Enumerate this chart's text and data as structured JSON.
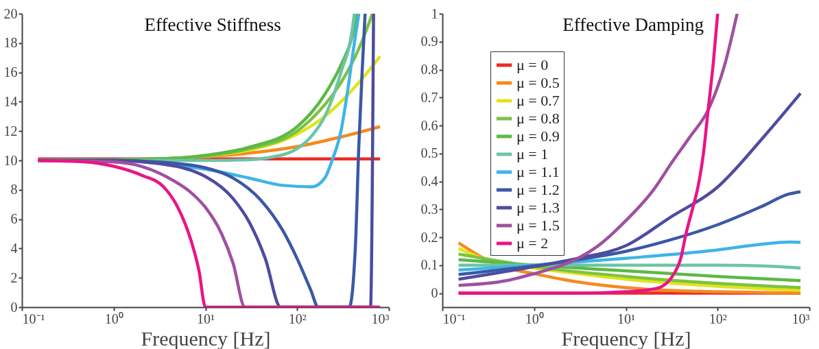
{
  "chart_data": [
    {
      "type": "line",
      "title": "Effective Stiffness",
      "xlabel": "Frequency [Hz]",
      "log": "x",
      "grid": false,
      "legend": false,
      "xlim": [
        0.1,
        1000
      ],
      "ylim": [
        0,
        20
      ],
      "xticks": [
        {
          "value": 0.1,
          "label": "10⁻¹"
        },
        {
          "value": 1,
          "label": "10⁰"
        },
        {
          "value": 10,
          "label": "10¹"
        },
        {
          "value": 100,
          "label": "10²"
        },
        {
          "value": 1000,
          "label": "10³"
        }
      ],
      "yticks": [
        0,
        2,
        4,
        6,
        8,
        10,
        12,
        14,
        16,
        18,
        20
      ],
      "series": [
        {
          "color": "#ee2a24",
          "x": [
            0.15,
            800
          ],
          "values": [
            10.1,
            10.1
          ]
        },
        {
          "color": "#f58a1f",
          "x": [
            3,
            10,
            30,
            100,
            300,
            800
          ],
          "values": [
            10.1,
            10.25,
            10.5,
            10.95,
            11.6,
            12.3
          ]
        },
        {
          "color": "#e0e41a",
          "x": [
            3,
            10,
            30,
            100,
            200,
            300,
            500,
            800
          ],
          "values": [
            10.1,
            10.3,
            10.7,
            11.8,
            13,
            14,
            15.5,
            17.1
          ]
        },
        {
          "color": "#7cc242",
          "x": [
            0.15,
            1,
            3,
            10,
            30,
            100,
            200,
            300,
            500,
            660
          ],
          "values": [
            10.05,
            10.05,
            10.1,
            10.3,
            10.8,
            12,
            13.8,
            15.3,
            18,
            20
          ]
        },
        {
          "color": "#5cb946",
          "x": [
            0.15,
            1,
            3,
            10,
            30,
            100,
            200,
            300,
            400,
            450
          ],
          "values": [
            10.05,
            10.05,
            10.1,
            10.35,
            10.9,
            12.3,
            14.5,
            16.5,
            18.5,
            20
          ]
        },
        {
          "color": "#6cc5a6",
          "x": [
            0.15,
            1,
            10,
            30,
            50,
            100,
            150,
            200,
            300,
            400,
            420
          ],
          "values": [
            10,
            10,
            10,
            10.05,
            10.2,
            10.8,
            11.8,
            13,
            16,
            19,
            20
          ]
        },
        {
          "color": "#3fb4e8",
          "x": [
            0.15,
            1,
            3,
            10,
            30,
            70,
            145,
            200,
            240,
            300,
            350,
            420,
            470
          ],
          "values": [
            10,
            10,
            9.8,
            9.4,
            8.8,
            8.3,
            8.2,
            8.8,
            10,
            12,
            14.5,
            18,
            20
          ]
        },
        {
          "color": "#3a58a6",
          "x": [
            0.15,
            1,
            3,
            10,
            20,
            40,
            70,
            100,
            140,
            170,
            370,
            430,
            470,
            510,
            550
          ],
          "values": [
            10,
            10,
            9.9,
            9.5,
            8.8,
            7.3,
            5.2,
            3.3,
            1.2,
            0,
            0,
            4,
            11,
            16,
            20
          ]
        },
        {
          "color": "#4e4c9f",
          "x": [
            0.15,
            1,
            3,
            10,
            20,
            30,
            45,
            66,
            630,
            680
          ],
          "values": [
            10,
            10,
            9.8,
            8.9,
            7.4,
            5.8,
            3.3,
            0,
            0,
            20
          ]
        },
        {
          "color": "#a0509f",
          "x": [
            0.15,
            1,
            2,
            4,
            7,
            10,
            15,
            20,
            27,
            800
          ],
          "values": [
            10,
            9.9,
            9.6,
            8.8,
            7.8,
            6.8,
            5,
            3,
            0,
            0
          ]
        },
        {
          "color": "#ea1487",
          "x": [
            0.15,
            0.5,
            1,
            2,
            3.5,
            5,
            7,
            8.5,
            10,
            800
          ],
          "values": [
            10,
            9.9,
            9.6,
            9,
            8.2,
            6.8,
            4.5,
            2.5,
            0,
            0
          ]
        }
      ]
    },
    {
      "type": "line",
      "title": "Effective Damping",
      "xlabel": "Frequency [Hz]",
      "log": "x",
      "grid": false,
      "legend": "top left",
      "xlim": [
        0.1,
        1000
      ],
      "ylim": [
        -0.05,
        1
      ],
      "xticks": [
        {
          "value": 0.1,
          "label": "10⁻¹"
        },
        {
          "value": 1,
          "label": "10⁰"
        },
        {
          "value": 10,
          "label": "10¹"
        },
        {
          "value": 100,
          "label": "10²"
        },
        {
          "value": 1000,
          "label": "10³"
        }
      ],
      "yticks": [
        0,
        0.1,
        0.2,
        0.3,
        0.4,
        0.5,
        0.6,
        0.7,
        0.8,
        0.9,
        1
      ],
      "series": [
        {
          "name": "μ = 0",
          "color": "#ee2a24",
          "x": [
            0.15,
            800
          ],
          "values": [
            0,
            0
          ]
        },
        {
          "name": "μ = 0.5",
          "color": "#f58a1f",
          "x": [
            0.15,
            0.3,
            0.5,
            1,
            2,
            3,
            10,
            30,
            100,
            800
          ],
          "values": [
            0.18,
            0.12,
            0.09,
            0.07,
            0.05,
            0.04,
            0.02,
            0.01,
            0.005,
            0
          ]
        },
        {
          "name": "μ = 0.7",
          "color": "#e0e41a",
          "x": [
            0.15,
            0.3,
            1,
            3,
            10,
            100,
            800
          ],
          "values": [
            0.16,
            0.12,
            0.09,
            0.07,
            0.05,
            0.025,
            0.01
          ]
        },
        {
          "name": "μ = 0.8",
          "color": "#7cc242",
          "x": [
            0.15,
            1,
            10,
            100,
            800
          ],
          "values": [
            0.14,
            0.095,
            0.06,
            0.035,
            0.02
          ]
        },
        {
          "name": "μ = 0.9",
          "color": "#5cb946",
          "x": [
            0.15,
            1,
            10,
            100,
            800
          ],
          "values": [
            0.12,
            0.1,
            0.08,
            0.06,
            0.045
          ]
        },
        {
          "name": "μ = 1",
          "color": "#6cc5a6",
          "x": [
            0.15,
            100,
            300,
            800
          ],
          "values": [
            0.1,
            0.1,
            0.098,
            0.09
          ]
        },
        {
          "name": "μ = 1.1",
          "color": "#3fb4e8",
          "x": [
            0.15,
            1,
            10,
            100,
            300,
            600,
            800
          ],
          "values": [
            0.083,
            0.1,
            0.125,
            0.155,
            0.175,
            0.183,
            0.182
          ]
        },
        {
          "name": "μ = 1.2",
          "color": "#3a58a6",
          "x": [
            0.15,
            1,
            3,
            10,
            30,
            100,
            300,
            600,
            800
          ],
          "values": [
            0.067,
            0.098,
            0.12,
            0.15,
            0.19,
            0.245,
            0.31,
            0.355,
            0.363
          ]
        },
        {
          "name": "μ = 1.3",
          "color": "#4e4c9f",
          "x": [
            0.15,
            1,
            3,
            10,
            30,
            100,
            300,
            800
          ],
          "values": [
            0.05,
            0.095,
            0.125,
            0.17,
            0.27,
            0.38,
            0.55,
            0.715
          ]
        },
        {
          "name": "μ = 1.5",
          "color": "#a0509f",
          "x": [
            0.15,
            0.5,
            1,
            2,
            3,
            5,
            10,
            20,
            32,
            50,
            80,
            120,
            163
          ],
          "values": [
            0.028,
            0.045,
            0.07,
            0.1,
            0.125,
            0.17,
            0.26,
            0.37,
            0.47,
            0.56,
            0.66,
            0.82,
            1.0
          ]
        },
        {
          "name": "μ = 2",
          "color": "#ea1487",
          "x": [
            0.15,
            3,
            10,
            20,
            25,
            32,
            40,
            45,
            53,
            61,
            70,
            79,
            90,
            100
          ],
          "values": [
            0,
            0,
            0.005,
            0.015,
            0.025,
            0.06,
            0.13,
            0.21,
            0.3,
            0.38,
            0.5,
            0.66,
            0.83,
            1.0
          ]
        }
      ]
    }
  ]
}
